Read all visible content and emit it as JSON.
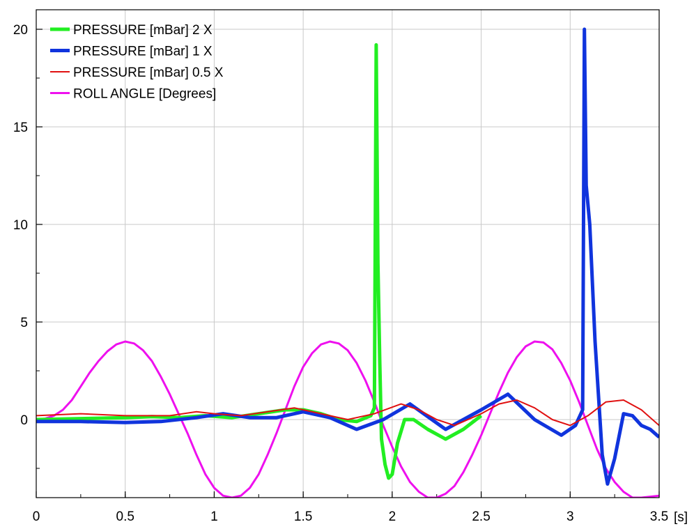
{
  "chart_data": {
    "type": "line",
    "xunit": "[s]",
    "xlim": [
      0,
      3.5
    ],
    "ylim": [
      -4,
      21
    ],
    "xticks": [
      0,
      0.5,
      1,
      1.5,
      2,
      2.5,
      3,
      3.5
    ],
    "xtick_labels": [
      "0",
      "0.5",
      "1",
      "1.5",
      "2",
      "2.5",
      "3",
      "3.5"
    ],
    "yticks": [
      0,
      5,
      10,
      15,
      20
    ],
    "ytick_labels": [
      "0",
      "5",
      "10",
      "15",
      "20"
    ],
    "grid": true,
    "legend_position": "top-left",
    "series": [
      {
        "name": "PRESSURE [mBar] 2 X",
        "color": "#22ee22",
        "stroke_width": 5,
        "x": [
          0,
          0.25,
          0.5,
          0.65,
          0.8,
          0.95,
          1.1,
          1.25,
          1.4,
          1.5,
          1.6,
          1.7,
          1.8,
          1.88,
          1.9,
          1.91,
          1.92,
          1.93,
          1.94,
          1.96,
          1.98,
          2.0,
          2.03,
          2.07,
          2.12,
          2.2,
          2.3,
          2.4,
          2.5
        ],
        "y": [
          0,
          0.05,
          0.1,
          0.15,
          0.1,
          0.2,
          0.1,
          0.3,
          0.5,
          0.5,
          0.3,
          0.0,
          -0.1,
          0.2,
          0.6,
          19.2,
          8.0,
          3.0,
          -1.0,
          -2.3,
          -3.0,
          -2.8,
          -1.2,
          0.0,
          0.0,
          -0.5,
          -1.0,
          -0.5,
          0.2
        ]
      },
      {
        "name": "PRESSURE [mBar] 1 X",
        "color": "#1034dd",
        "stroke_width": 5,
        "x": [
          0,
          0.25,
          0.5,
          0.7,
          0.9,
          1.05,
          1.2,
          1.35,
          1.5,
          1.65,
          1.8,
          1.95,
          2.1,
          2.3,
          2.5,
          2.65,
          2.8,
          2.95,
          3.03,
          3.07,
          3.08,
          3.09,
          3.11,
          3.14,
          3.18,
          3.21,
          3.25,
          3.3,
          3.35,
          3.4,
          3.45,
          3.5
        ],
        "y": [
          -0.1,
          -0.1,
          -0.15,
          -0.1,
          0.1,
          0.3,
          0.1,
          0.1,
          0.4,
          0.1,
          -0.5,
          0.0,
          0.8,
          -0.5,
          0.5,
          1.3,
          0.0,
          -0.8,
          -0.3,
          0.5,
          20.0,
          12.0,
          10.0,
          4.0,
          -1.8,
          -3.3,
          -2.0,
          0.3,
          0.2,
          -0.3,
          -0.5,
          -0.9
        ]
      },
      {
        "name": "PRESSURE [mBar] 0.5 X",
        "color": "#e01010",
        "stroke_width": 2,
        "x": [
          0,
          0.25,
          0.5,
          0.75,
          0.9,
          1.0,
          1.15,
          1.3,
          1.45,
          1.6,
          1.75,
          1.9,
          2.05,
          2.15,
          2.25,
          2.35,
          2.5,
          2.6,
          2.7,
          2.8,
          2.9,
          3.0,
          3.1,
          3.2,
          3.3,
          3.4,
          3.5
        ],
        "y": [
          0.2,
          0.3,
          0.2,
          0.2,
          0.4,
          0.3,
          0.2,
          0.4,
          0.6,
          0.3,
          0.0,
          0.3,
          0.8,
          0.5,
          0.0,
          -0.3,
          0.3,
          0.8,
          1.0,
          0.6,
          0.0,
          -0.3,
          0.2,
          0.9,
          1.0,
          0.5,
          -0.3
        ]
      },
      {
        "name": "ROLL ANGLE  [Degrees]",
        "color": "#ee10ee",
        "stroke_width": 3,
        "x": [
          0,
          0.05,
          0.1,
          0.15,
          0.2,
          0.25,
          0.3,
          0.35,
          0.4,
          0.45,
          0.5,
          0.55,
          0.6,
          0.65,
          0.7,
          0.75,
          0.8,
          0.85,
          0.9,
          0.95,
          1.0,
          1.05,
          1.1,
          1.15,
          1.2,
          1.25,
          1.3,
          1.35,
          1.4,
          1.45,
          1.5,
          1.55,
          1.6,
          1.65,
          1.7,
          1.75,
          1.8,
          1.85,
          1.9,
          1.95,
          2.0,
          2.05,
          2.1,
          2.15,
          2.2,
          2.25,
          2.3,
          2.35,
          2.4,
          2.45,
          2.5,
          2.55,
          2.6,
          2.65,
          2.7,
          2.75,
          2.8,
          2.85,
          2.9,
          2.95,
          3.0,
          3.05,
          3.1,
          3.15,
          3.2,
          3.25,
          3.3,
          3.35,
          3.4,
          3.45,
          3.5
        ],
        "y": [
          0.0,
          0.05,
          0.2,
          0.5,
          1.0,
          1.7,
          2.4,
          3.0,
          3.5,
          3.85,
          4.0,
          3.9,
          3.55,
          3.0,
          2.2,
          1.3,
          0.3,
          -0.7,
          -1.8,
          -2.8,
          -3.5,
          -3.9,
          -4.0,
          -3.9,
          -3.5,
          -2.8,
          -1.8,
          -0.7,
          0.5,
          1.7,
          2.7,
          3.4,
          3.85,
          4.0,
          3.9,
          3.55,
          2.9,
          2.0,
          0.9,
          -0.3,
          -1.4,
          -2.4,
          -3.2,
          -3.7,
          -4.0,
          -4.0,
          -3.8,
          -3.4,
          -2.7,
          -1.8,
          -0.8,
          0.3,
          1.4,
          2.4,
          3.2,
          3.75,
          4.0,
          3.95,
          3.6,
          2.9,
          2.0,
          0.9,
          -0.3,
          -1.5,
          -2.5,
          -3.2,
          -3.7,
          -4.0,
          -4.0,
          -3.95,
          -3.9
        ]
      }
    ]
  }
}
